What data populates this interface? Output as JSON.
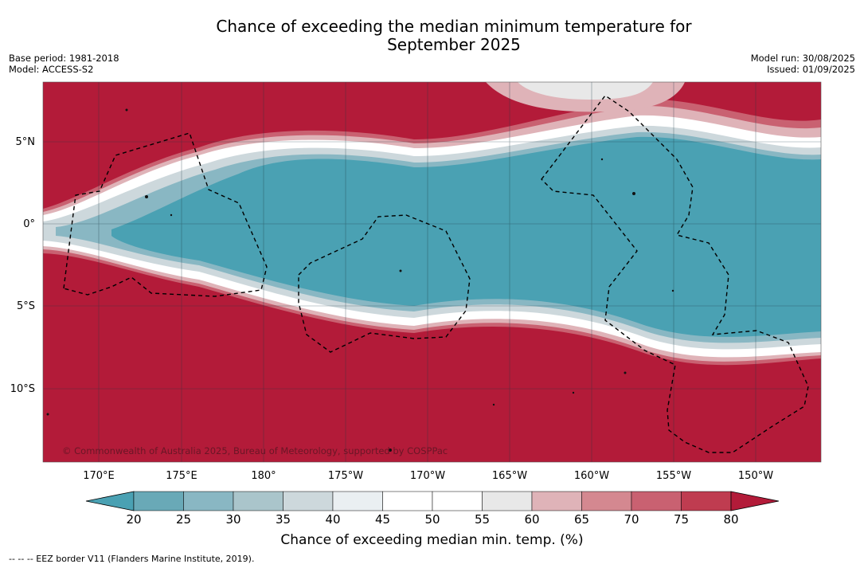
{
  "title": {
    "line1": "Chance of exceeding the median minimum temperature for",
    "line2": "September 2025"
  },
  "meta_left": {
    "base_period": "Base period: 1981-2018",
    "model": "Model: ACCESS-S2"
  },
  "meta_right": {
    "model_run": "Model run: 30/08/2025",
    "issued": "Issued: 01/09/2025"
  },
  "map": {
    "lat_labels": [
      "5°N",
      "0°",
      "5°S",
      "10°S"
    ],
    "lon_labels": [
      "170°E",
      "175°E",
      "180°",
      "175°W",
      "170°W",
      "165°W",
      "160°W",
      "155°W",
      "150°W"
    ],
    "copyright": "© Commonwealth of Australia 2025, Bureau of Meteorology, supported by COSPPac",
    "colors": {
      "above": "#b31b39",
      "below": "#4aa1b3"
    }
  },
  "colorbar": {
    "ticks": [
      "20",
      "25",
      "30",
      "35",
      "40",
      "45",
      "50",
      "55",
      "60",
      "65",
      "70",
      "75",
      "80"
    ],
    "colors": [
      "#4aa1b3",
      "#69a9b7",
      "#89b7c3",
      "#aac5cb",
      "#cdd8dc",
      "#eaeff2",
      "#ffffff",
      "#ffffff",
      "#e8e8e8",
      "#dfb3b8",
      "#d48890",
      "#c96171",
      "#bf3c50",
      "#b31b39"
    ],
    "title": "Chance of exceeding median min. temp. (%)"
  },
  "legend_note": "--  --  -- EEZ border V11 (Flanders Marine Institute, 2019)."
}
